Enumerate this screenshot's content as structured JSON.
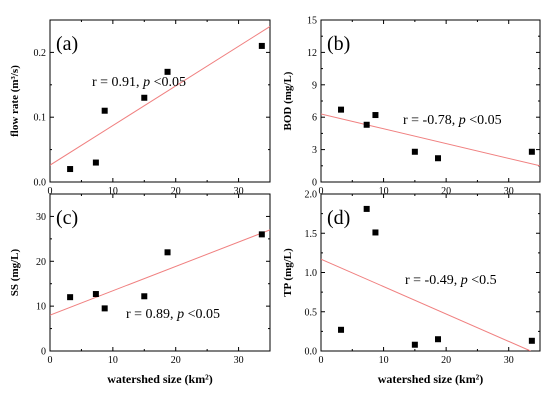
{
  "chart_data": [
    {
      "type": "scatter",
      "panel_label": "(a)",
      "ylabel": "flow rate (m³/s)",
      "xlabel": "",
      "xlim": [
        0,
        35
      ],
      "ylim": [
        0,
        0.25
      ],
      "x_ticks": [
        0,
        10,
        20,
        30
      ],
      "y_ticks": [
        0.0,
        0.1,
        0.2
      ],
      "y_tick_labels": [
        "0.0",
        "0.1",
        "0.2"
      ],
      "x": [
        3.2,
        7.3,
        8.7,
        15.0,
        18.7,
        33.7
      ],
      "y": [
        0.02,
        0.03,
        0.11,
        0.13,
        0.17,
        0.21
      ],
      "fit_line": [
        [
          0,
          0.026
        ],
        [
          35,
          0.24
        ]
      ],
      "annotation": {
        "prefix": "r = 0.91, ",
        "p": "p",
        "suffix": " <0.05"
      },
      "line_color": "#f08080"
    },
    {
      "type": "scatter",
      "panel_label": "(b)",
      "ylabel": "BOD (mg/L)",
      "xlabel": "",
      "xlim": [
        0,
        35
      ],
      "ylim": [
        0,
        15
      ],
      "x_ticks": [
        0,
        10,
        20,
        30
      ],
      "y_ticks": [
        0,
        3,
        6,
        9,
        12,
        15
      ],
      "y_tick_labels": [
        "0",
        "3",
        "6",
        "9",
        "12",
        "15"
      ],
      "x": [
        3.2,
        7.3,
        8.7,
        15.0,
        18.7,
        33.7
      ],
      "y": [
        6.7,
        5.3,
        6.2,
        2.8,
        2.2,
        2.8
      ],
      "fit_line": [
        [
          0,
          6.3
        ],
        [
          35,
          1.5
        ]
      ],
      "annotation": {
        "prefix": "r = -0.78, ",
        "p": "p",
        "suffix": " <0.05"
      },
      "line_color": "#f08080"
    },
    {
      "type": "scatter",
      "panel_label": "(c)",
      "ylabel": "SS (mg/L)",
      "xlabel": "watershed size (km²)",
      "xlim": [
        0,
        35
      ],
      "ylim": [
        0,
        35
      ],
      "x_ticks": [
        0,
        10,
        20,
        30
      ],
      "y_ticks": [
        0,
        10,
        20,
        30
      ],
      "y_tick_labels": [
        "0",
        "10",
        "20",
        "30"
      ],
      "x": [
        3.2,
        7.3,
        8.7,
        15.0,
        18.7,
        33.7
      ],
      "y": [
        12,
        12.7,
        9.5,
        12.2,
        22,
        26
      ],
      "fit_line": [
        [
          0,
          8
        ],
        [
          35,
          27
        ]
      ],
      "annotation": {
        "prefix": "r = 0.89, ",
        "p": "p",
        "suffix": " <0.05"
      },
      "line_color": "#f08080"
    },
    {
      "type": "scatter",
      "panel_label": "(d)",
      "ylabel": "TP (mg/L)",
      "xlabel": "watershed size (km²)",
      "xlim": [
        0,
        35
      ],
      "ylim": [
        0,
        2.0
      ],
      "x_ticks": [
        0,
        10,
        20,
        30
      ],
      "y_ticks": [
        0.0,
        0.5,
        1.0,
        1.5,
        2.0
      ],
      "y_tick_labels": [
        "0.0",
        "0.5",
        "1.0",
        "1.5",
        "2.0"
      ],
      "x": [
        3.2,
        7.3,
        8.7,
        15.0,
        18.7,
        33.7
      ],
      "y": [
        0.27,
        1.81,
        1.51,
        0.08,
        0.15,
        0.13
      ],
      "fit_line": [
        [
          0,
          1.17
        ],
        [
          33.5,
          0
        ]
      ],
      "annotation": {
        "prefix": "r = -0.49, ",
        "p": "p",
        "suffix": " <0.5"
      },
      "line_color": "#f08080"
    }
  ]
}
